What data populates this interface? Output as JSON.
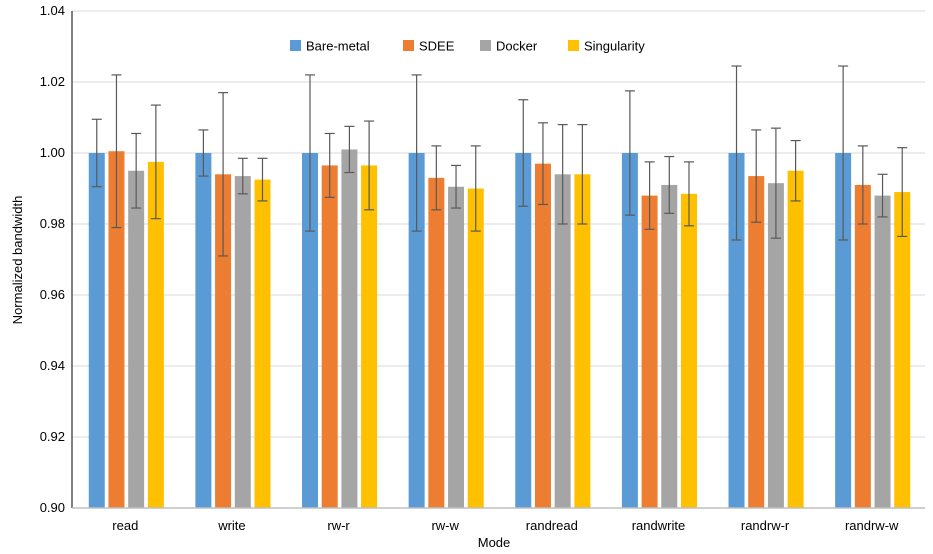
{
  "chart_data": {
    "type": "bar",
    "title": "",
    "xlabel": "Mode",
    "ylabel": "Normalized bandwidth",
    "ylim": [
      0.9,
      1.04
    ],
    "yticks": [
      "0.90",
      "0.92",
      "0.94",
      "0.96",
      "0.98",
      "1.00",
      "1.02",
      "1.04"
    ],
    "grid": "horizontal",
    "legend_position": "top-center",
    "categories": [
      "read",
      "write",
      "rw-r",
      "rw-w",
      "randread",
      "randwrite",
      "randrw-r",
      "randrw-w"
    ],
    "series": [
      {
        "name": "Bare-metal",
        "color": "#5B9BD5",
        "values": [
          1.0,
          1.0,
          1.0,
          1.0,
          1.0,
          1.0,
          1.0,
          1.0
        ],
        "error": [
          0.0095,
          0.0065,
          0.022,
          0.022,
          0.015,
          0.0175,
          0.0245,
          0.0245
        ]
      },
      {
        "name": "SDEE",
        "color": "#ED7D31",
        "values": [
          1.0005,
          0.994,
          0.9965,
          0.993,
          0.997,
          0.988,
          0.9935,
          0.991
        ],
        "error": [
          0.0215,
          0.023,
          0.009,
          0.009,
          0.0115,
          0.0095,
          0.013,
          0.011
        ]
      },
      {
        "name": "Docker",
        "color": "#A5A5A5",
        "values": [
          0.995,
          0.9935,
          1.001,
          0.9905,
          0.994,
          0.991,
          0.9915,
          0.988
        ],
        "error": [
          0.0105,
          0.005,
          0.0065,
          0.006,
          0.014,
          0.008,
          0.0155,
          0.006
        ]
      },
      {
        "name": "Singularity",
        "color": "#FFC000",
        "values": [
          0.9975,
          0.9925,
          0.9965,
          0.99,
          0.994,
          0.9885,
          0.995,
          0.989
        ],
        "error": [
          0.016,
          0.006,
          0.0125,
          0.012,
          0.014,
          0.009,
          0.0085,
          0.0125
        ]
      }
    ]
  }
}
